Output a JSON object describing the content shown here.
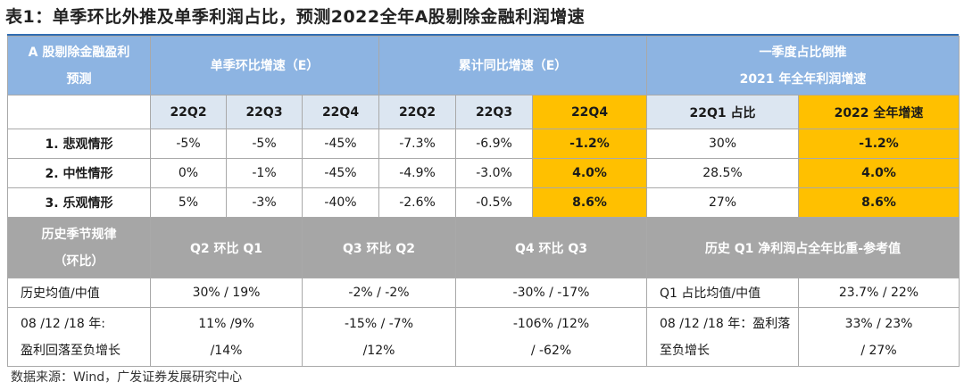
{
  "title": "表1：单季环比外推及单季利润占比，预测2022全年A股剔除金融利润增速",
  "header": {
    "corner_line1": "A 股剔除金融盈利",
    "corner_line2": "预测",
    "group1": "单季环比增速（E）",
    "group2": "累计同比增速（E）",
    "group3_line1": "一季度占比倒推",
    "group3_line2": "2021 年全年利润增速"
  },
  "subheader": [
    "22Q2",
    "22Q3",
    "22Q4",
    "22Q2",
    "22Q3",
    "22Q4",
    "22Q1 占比",
    "2022 全年增速"
  ],
  "rows": [
    {
      "label": "1. 悲观情形",
      "values": [
        "-5%",
        "-5%",
        "-45%",
        "-7.3%",
        "-6.9%",
        "-1.2%",
        "30%",
        "-1.2%"
      ]
    },
    {
      "label": "2. 中性情形",
      "values": [
        "0%",
        "-1%",
        "-45%",
        "-4.9%",
        "-3.0%",
        "4.0%",
        "28.5%",
        "4.0%"
      ]
    },
    {
      "label": "3. 乐观情形",
      "values": [
        "5%",
        "-3%",
        "-40%",
        "-2.6%",
        "-0.5%",
        "8.6%",
        "27%",
        "8.6%"
      ]
    }
  ],
  "history_header": {
    "corner_line1": "历史季节规律",
    "corner_line2": "（环比）",
    "c1": "Q2 环比 Q1",
    "c2": "Q3 环比 Q2",
    "c3": "Q4 环比 Q3",
    "c4": "历史 Q1 净利润占全年比重-参考值"
  },
  "history_rows": [
    {
      "label_line1": "历史均值/中值",
      "label_line2": "",
      "c1_line1": "30% / 19%",
      "c1_line2": "",
      "c2_line1": "-2% / -2%",
      "c2_line2": "",
      "c3_line1": "-30% / -17%",
      "c3_line2": "",
      "c4_label_line1": "Q1 占比均值/中值",
      "c4_label_line2": "",
      "c4_value_line1": "23.7% / 22%",
      "c4_value_line2": ""
    },
    {
      "label_line1": "08 /12 /18 年:",
      "label_line2": "盈利回落至负增长",
      "c1_line1": "11% /9%",
      "c1_line2": "/14%",
      "c2_line1": "-15% / -7%",
      "c2_line2": "/12%",
      "c3_line1": "-106% /12%",
      "c3_line2": "/ -62%",
      "c4_label_line1": "08 /12 /18 年：盈利落",
      "c4_label_line2": "至负增长",
      "c4_value_line1": "33% / 23%",
      "c4_value_line2": "/ 27%"
    }
  ],
  "source": "数据来源：Wind，广发证券发展研究中心",
  "colors": {
    "header_blue": "#8db4e2",
    "subheader_blue": "#dce6f1",
    "highlight_gold": "#ffc000",
    "history_gray": "#a6a6a6"
  }
}
